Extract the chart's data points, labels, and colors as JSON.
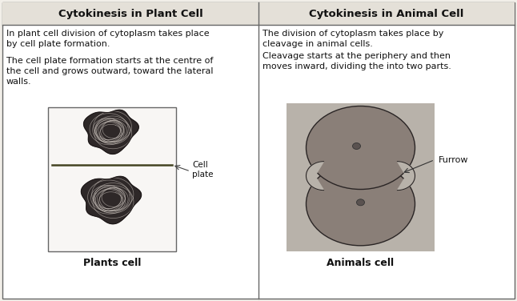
{
  "title_left": "Cytokinesis in Plant Cell",
  "title_right": "Cytokinesis in Animal Cell",
  "text_left_1": "In plant cell division of cytoplasm takes place\nby cell plate formation.",
  "text_left_2": "The cell plate formation starts at the centre of\nthe cell and grows outward, toward the lateral\nwalls.",
  "text_right_1": "The division of cytoplasm takes place by\ncleavage in animal cells.",
  "text_right_2": "Cleavage starts at the periphery and then\nmoves inward, dividing the into two parts.",
  "label_left": "Plants cell",
  "label_right": "Animals cell",
  "annotation_left": "Cell\nplate",
  "annotation_right": "Furrow",
  "bg_color": "#f2efe9",
  "header_bg": "#e4e0d8",
  "border_color": "#666666",
  "cell_bg": "#ffffff",
  "img_bg_right": "#b8b2aa",
  "cell_color": "#8a7f78",
  "nucleus_color": "#5a5250",
  "chrom_color": "#3a3030",
  "plate_color": "#777755"
}
